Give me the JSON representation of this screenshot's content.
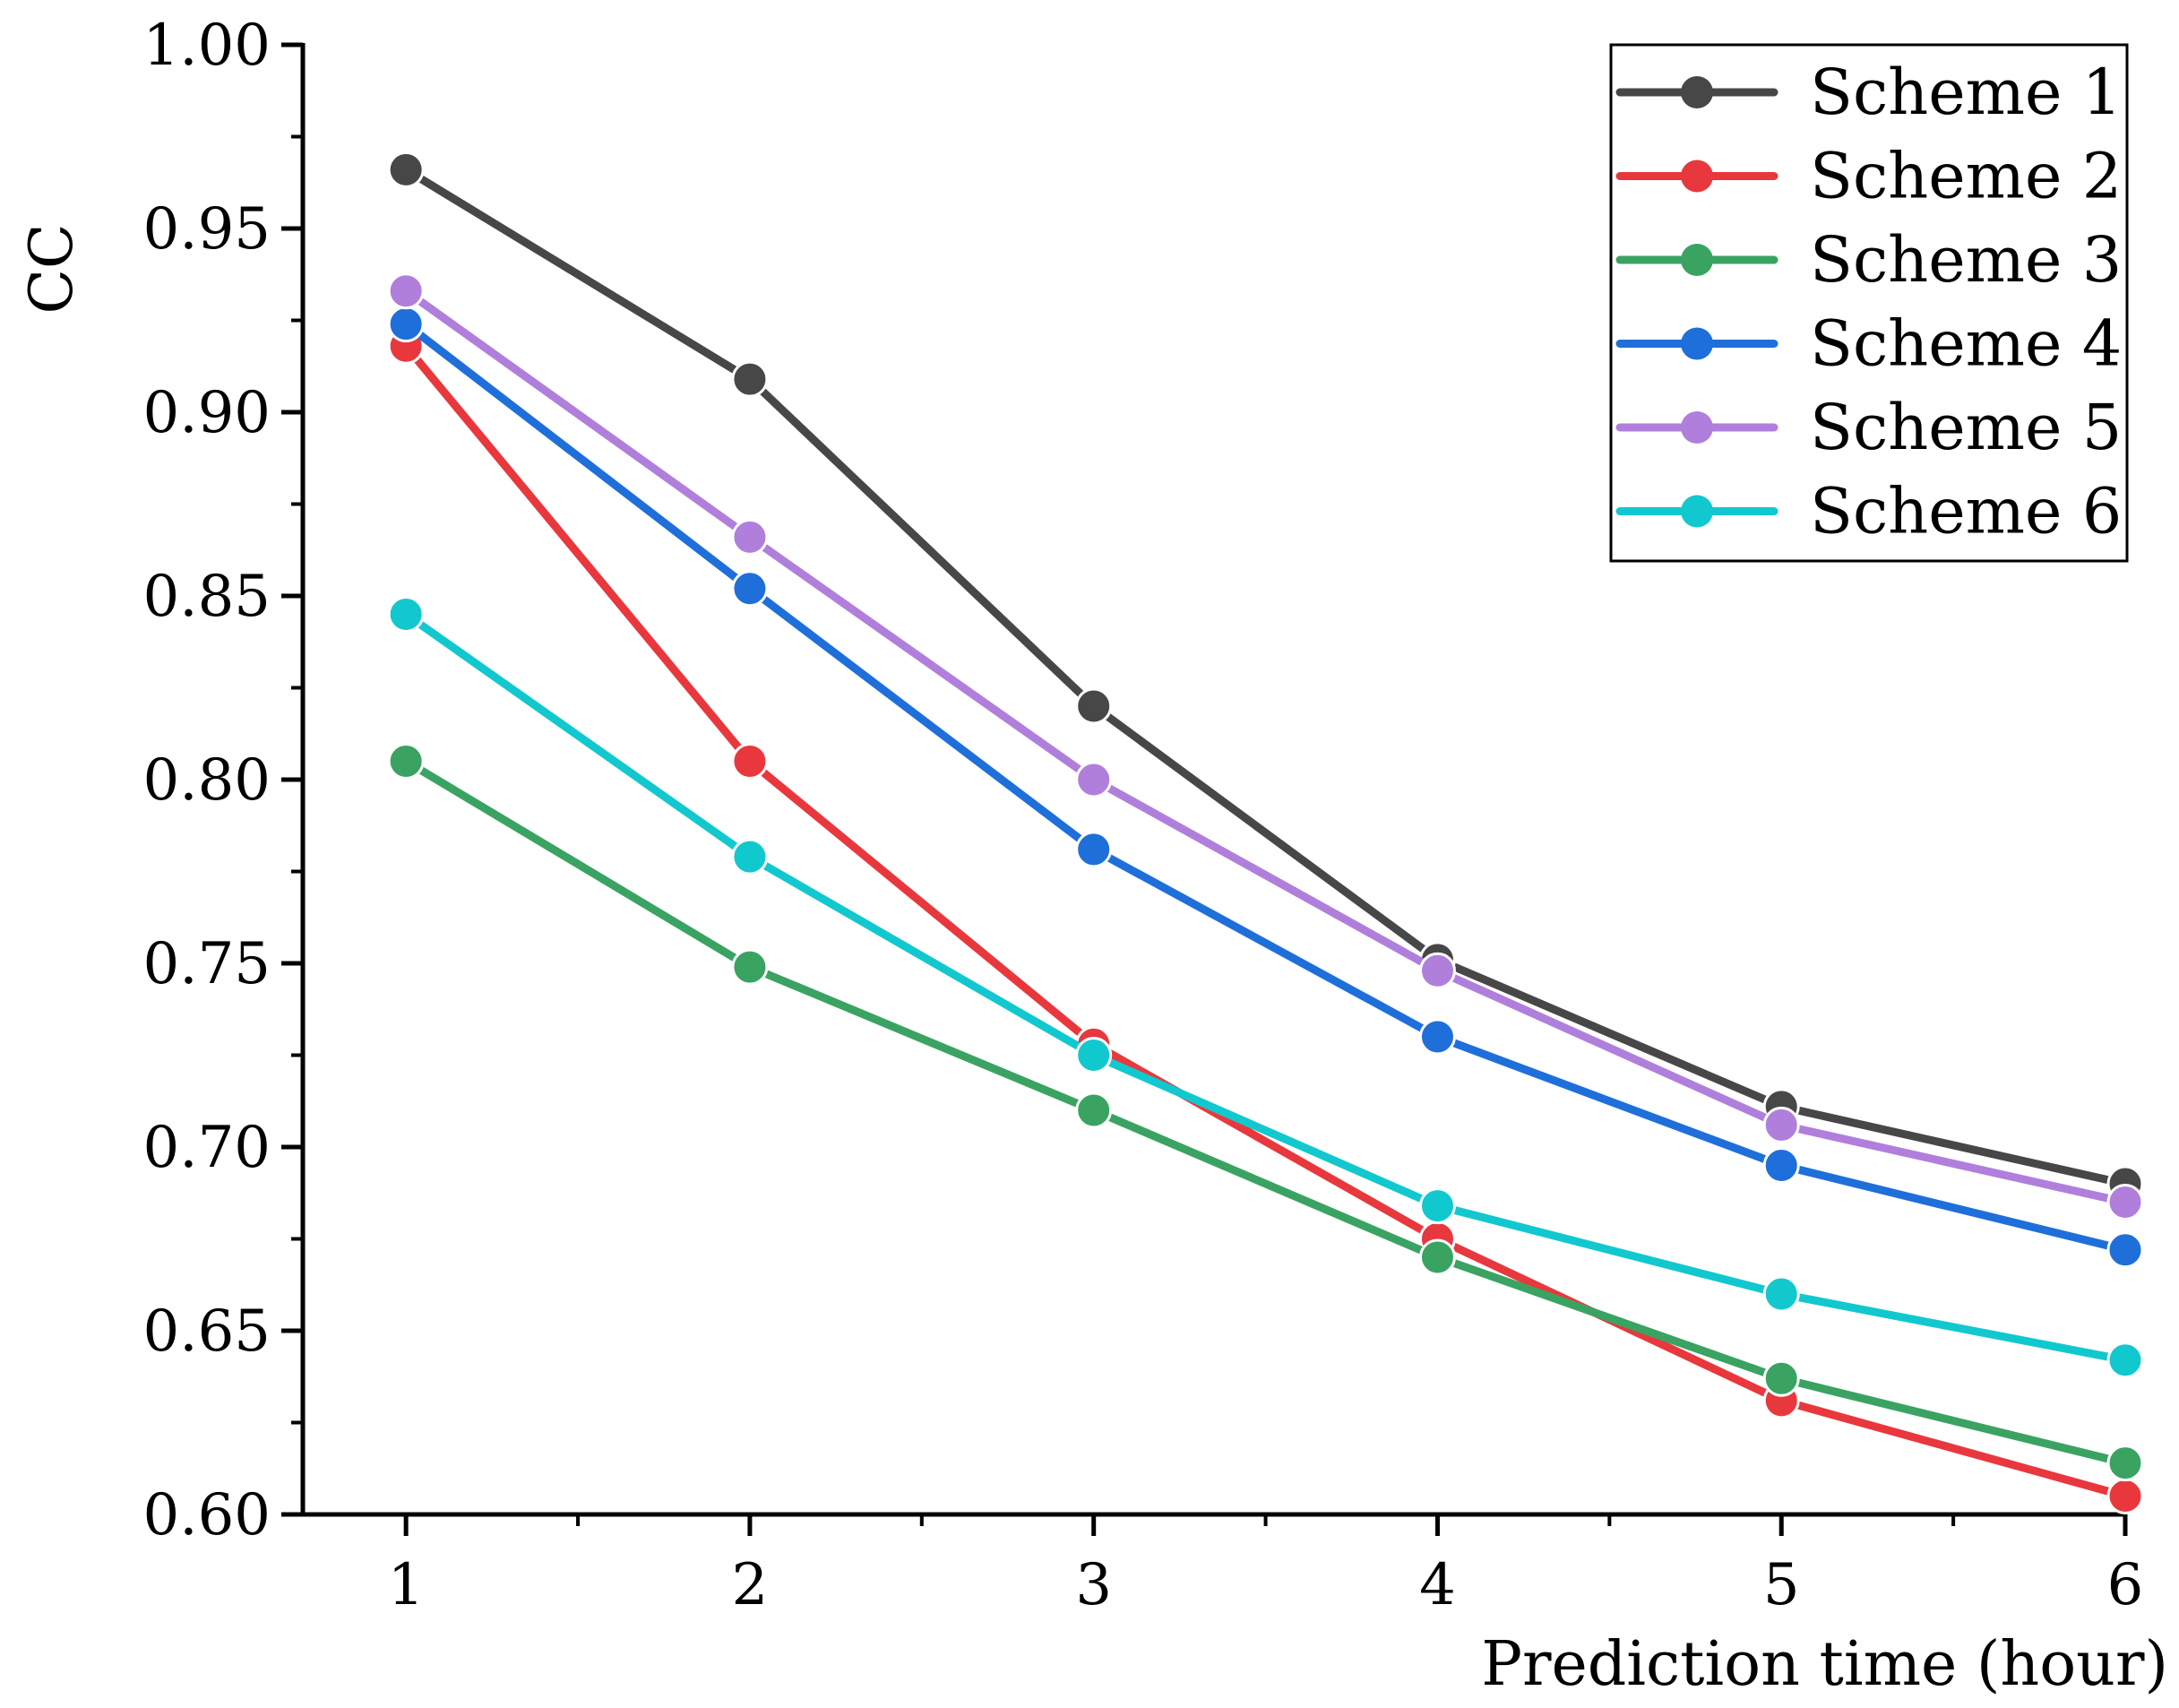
{
  "chart_data": {
    "type": "line",
    "title": "",
    "xlabel": "Prediction time (hour)",
    "ylabel": "CC",
    "x": [
      1,
      2,
      3,
      4,
      5,
      6
    ],
    "xlim": [
      0.7,
      6.0
    ],
    "ylim": [
      0.6,
      1.0
    ],
    "x_ticks": [
      "1",
      "2",
      "3",
      "4",
      "5",
      "6"
    ],
    "y_ticks": [
      "0.60",
      "0.65",
      "0.70",
      "0.75",
      "0.80",
      "0.85",
      "0.90",
      "0.95",
      "1.00"
    ],
    "grid": false,
    "legend_position": "top-right",
    "series": [
      {
        "name": "Scheme 1",
        "color": "#474747",
        "values": [
          0.966,
          0.909,
          0.82,
          0.751,
          0.711,
          0.69
        ]
      },
      {
        "name": "Scheme 2",
        "color": "#e8383d",
        "values": [
          0.918,
          0.805,
          0.728,
          0.675,
          0.631,
          0.605
        ]
      },
      {
        "name": "Scheme 3",
        "color": "#3aa362",
        "values": [
          0.805,
          0.749,
          0.71,
          0.67,
          0.637,
          0.614
        ]
      },
      {
        "name": "Scheme 4",
        "color": "#1e6fd9",
        "values": [
          0.924,
          0.852,
          0.781,
          0.73,
          0.695,
          0.672
        ]
      },
      {
        "name": "Scheme 5",
        "color": "#b07fdc",
        "values": [
          0.933,
          0.866,
          0.8,
          0.748,
          0.706,
          0.685
        ]
      },
      {
        "name": "Scheme 6",
        "color": "#12c8cf",
        "values": [
          0.845,
          0.779,
          0.725,
          0.684,
          0.66,
          0.642
        ]
      }
    ]
  }
}
